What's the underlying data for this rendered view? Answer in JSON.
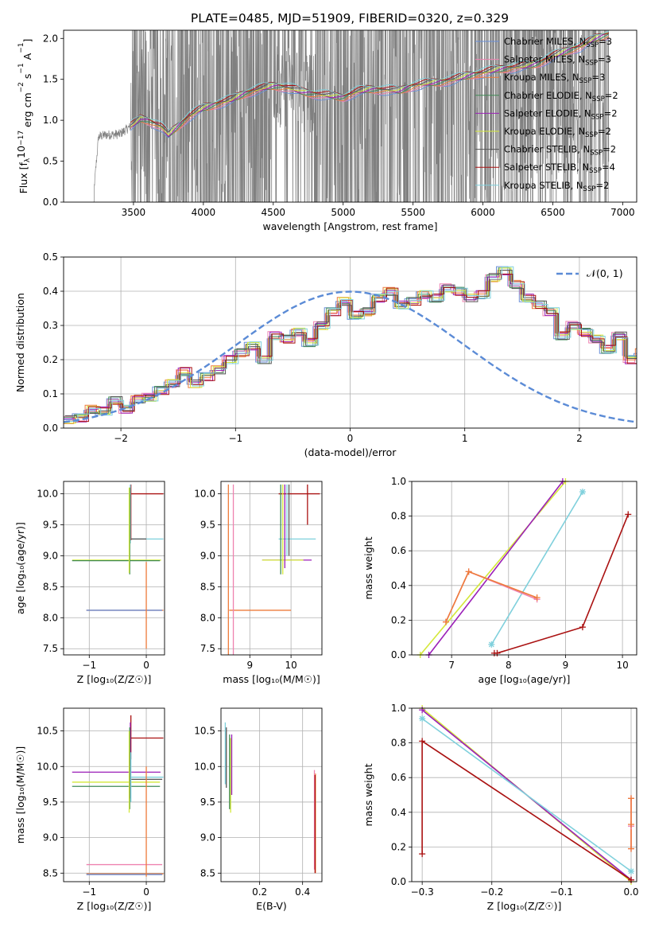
{
  "figure": {
    "title": "PLATE=0485, MJD=51909, FIBERID=0320, z=0.329"
  },
  "colors": {
    "chabrier_miles": "#6a8fd8",
    "salpeter_miles": "#ee82b0",
    "kroupa_miles": "#ee7b3a",
    "chabrier_elodie": "#3f8a55",
    "salpeter_elodie": "#9b1fb8",
    "kroupa_elodie": "#d4e83a",
    "chabrier_stelib": "#555555",
    "salpeter_stelib": "#aa1111",
    "kroupa_stelib": "#7fd0dc",
    "data": "#808080",
    "grid": "#b0b0b0",
    "normal": "#5b8bd6"
  },
  "legend": {
    "series": [
      {
        "key": "chabrier_miles",
        "text": "Chabrier MILES, N",
        "sub": "SSP",
        "eq": "=3"
      },
      {
        "key": "salpeter_miles",
        "text": "Salpeter MILES, N",
        "sub": "SSP",
        "eq": "=3"
      },
      {
        "key": "kroupa_miles",
        "text": "Kroupa MILES, N",
        "sub": "SSP",
        "eq": "=3"
      },
      {
        "key": "chabrier_elodie",
        "text": "Chabrier ELODIE, N",
        "sub": "SSP",
        "eq": "=2"
      },
      {
        "key": "salpeter_elodie",
        "text": "Salpeter ELODIE, N",
        "sub": "SSP",
        "eq": "=2"
      },
      {
        "key": "kroupa_elodie",
        "text": "Kroupa ELODIE, N",
        "sub": "SSP",
        "eq": "=2"
      },
      {
        "key": "chabrier_stelib",
        "text": "Chabrier STELIB, N",
        "sub": "SSP",
        "eq": "=2"
      },
      {
        "key": "salpeter_stelib",
        "text": "Salpeter STELIB, N",
        "sub": "SSP",
        "eq": "=4"
      },
      {
        "key": "kroupa_stelib",
        "text": "Kroupa STELIB, N",
        "sub": "SSP",
        "eq": "=2"
      }
    ],
    "normal_label": "𝒩(0, 1)"
  },
  "chart_data": [
    {
      "id": "spectrum",
      "type": "line",
      "xlabel": "wavelength [Angstrom, rest frame]",
      "ylabel_parts": [
        "Flux [f",
        "λ",
        "10",
        "−17",
        " erg cm",
        "−2",
        " s",
        "−1",
        " A",
        "−1",
        "]"
      ],
      "xlim": [
        3000,
        7100
      ],
      "ylim": [
        0,
        2.1
      ],
      "xticks": [
        3500,
        4000,
        4500,
        5000,
        5500,
        6000,
        6500,
        7000
      ],
      "yticks": [
        0.0,
        0.5,
        1.0,
        1.5,
        2.0
      ],
      "grid": false,
      "legend_position": "upper right",
      "data_range": [
        3210,
        6900
      ],
      "model_continuum": {
        "x": [
          3210,
          3250,
          3300,
          3400,
          3500,
          3550,
          3600,
          3700,
          3750,
          3800,
          3900,
          4000,
          4100,
          4200,
          4300,
          4400,
          4500,
          4600,
          4700,
          4800,
          4900,
          5000,
          5100,
          5200,
          5300,
          5400,
          5500,
          5600,
          5700,
          5800,
          5900,
          6000,
          6100,
          6200,
          6300,
          6400,
          6500,
          6600,
          6700,
          6800,
          6900
        ],
        "y": [
          0.0,
          0.8,
          0.82,
          0.83,
          0.95,
          1.02,
          1.0,
          0.92,
          0.82,
          0.9,
          1.05,
          1.15,
          1.2,
          1.25,
          1.33,
          1.38,
          1.42,
          1.4,
          1.35,
          1.32,
          1.3,
          1.28,
          1.35,
          1.38,
          1.37,
          1.36,
          1.42,
          1.45,
          1.47,
          1.5,
          1.55,
          1.58,
          1.62,
          1.64,
          1.66,
          1.7,
          1.78,
          1.85,
          1.9,
          2.0,
          2.05
        ]
      }
    },
    {
      "id": "residuals",
      "type": "step",
      "xlabel": "(data-model)/error",
      "ylabel": "Normed distribution",
      "xlim": [
        -2.5,
        2.5
      ],
      "ylim": [
        0,
        0.5
      ],
      "xticks": [
        -2,
        -1,
        0,
        1,
        2
      ],
      "yticks": [
        0.0,
        0.1,
        0.2,
        0.3,
        0.4,
        0.5
      ],
      "grid": true,
      "legend_position": "upper right",
      "bin_edges_start": -2.5,
      "bin_width": 0.1,
      "histogram": [
        0.025,
        0.03,
        0.055,
        0.05,
        0.08,
        0.055,
        0.085,
        0.09,
        0.11,
        0.13,
        0.165,
        0.13,
        0.15,
        0.17,
        0.2,
        0.22,
        0.24,
        0.2,
        0.27,
        0.26,
        0.28,
        0.25,
        0.3,
        0.34,
        0.37,
        0.33,
        0.34,
        0.38,
        0.4,
        0.36,
        0.37,
        0.39,
        0.38,
        0.41,
        0.4,
        0.38,
        0.39,
        0.44,
        0.46,
        0.42,
        0.38,
        0.36,
        0.34,
        0.27,
        0.3,
        0.28,
        0.26,
        0.23,
        0.27,
        0.2,
        0.22,
        0.2,
        0.18,
        0.2,
        0.17,
        0.15,
        0.13,
        0.16,
        0.12,
        0.11,
        0.1,
        0.09,
        0.085,
        0.07,
        0.09,
        0.065,
        0.06,
        0.045,
        0.05,
        0.03,
        0.025,
        0.02
      ]
    },
    {
      "id": "age_vs_Z",
      "type": "errorbar",
      "xlabel": "Z [log₁₀(Z/Z☉)]",
      "ylabel": "age  [log₁₀(age/yr)]",
      "xlim": [
        -1.45,
        0.32
      ],
      "ylim": [
        7.4,
        10.2
      ],
      "xticks": [
        -1,
        0
      ],
      "yticks": [
        7.5,
        8.0,
        8.5,
        9.0,
        9.5,
        10.0
      ],
      "grid": true,
      "hlines": [
        {
          "key": "salpeter_stelib",
          "y": 10.0,
          "x0": -0.27,
          "x1": 0.3
        },
        {
          "key": "kroupa_stelib",
          "y": 9.27,
          "x0": -0.27,
          "x1": 0.3
        },
        {
          "key": "chabrier_stelib",
          "y": 9.27,
          "x0": -0.27,
          "x1": 0.0
        },
        {
          "key": "kroupa_elodie",
          "y": 8.93,
          "x0": -1.3,
          "x1": 0.26
        },
        {
          "key": "chabrier_elodie",
          "y": 8.92,
          "x0": -1.3,
          "x1": 0.24
        },
        {
          "key": "kroupa_miles",
          "y": 8.12,
          "x0": -1.05,
          "x1": 0.3
        },
        {
          "key": "chabrier_miles",
          "y": 8.12,
          "x0": -1.05,
          "x1": 0.28
        }
      ],
      "vlines": [
        {
          "key": "salpeter_stelib",
          "x": -0.27,
          "y0": 9.25,
          "y1": 10.15
        },
        {
          "key": "kroupa_stelib",
          "x": -0.28,
          "y0": 9.2,
          "y1": 10.15
        },
        {
          "key": "chabrier_elodie",
          "x": -0.29,
          "y0": 8.7,
          "y1": 10.1
        },
        {
          "key": "kroupa_elodie",
          "x": -0.3,
          "y0": 8.72,
          "y1": 10.1
        },
        {
          "key": "kroupa_miles",
          "x": 0.0,
          "y0": 7.5,
          "y1": 8.9
        }
      ]
    },
    {
      "id": "age_vs_mass",
      "type": "errorbar",
      "xlabel": "mass [log₁₀(M/M☉)]",
      "ylabel": "",
      "xlim": [
        8.3,
        10.75
      ],
      "ylim": [
        7.4,
        10.2
      ],
      "xticks": [
        9,
        10
      ],
      "yticks": [
        7.5,
        8.0,
        8.5,
        9.0,
        9.5,
        10.0
      ],
      "grid": true,
      "hlines": [
        {
          "key": "salpeter_stelib",
          "y": 10.0,
          "x0": 9.7,
          "x1": 10.7
        },
        {
          "key": "kroupa_stelib",
          "y": 9.27,
          "x0": 9.7,
          "x1": 10.6
        },
        {
          "key": "salpeter_elodie",
          "y": 8.93,
          "x0": 9.3,
          "x1": 10.5
        },
        {
          "key": "kroupa_elodie",
          "y": 8.93,
          "x0": 9.3,
          "x1": 10.3
        },
        {
          "key": "kroupa_miles",
          "y": 8.12,
          "x0": 8.5,
          "x1": 10.0
        }
      ],
      "vlines": [
        {
          "key": "kroupa_miles",
          "x": 8.48,
          "y0": 7.4,
          "y1": 10.15
        },
        {
          "key": "salpeter_miles",
          "x": 8.6,
          "y0": 7.4,
          "y1": 10.15
        },
        {
          "key": "chabrier_elodie",
          "x": 9.75,
          "y0": 8.7,
          "y1": 10.15
        },
        {
          "key": "kroupa_elodie",
          "x": 9.8,
          "y0": 8.7,
          "y1": 10.15
        },
        {
          "key": "salpeter_elodie",
          "x": 9.85,
          "y0": 8.8,
          "y1": 10.15
        },
        {
          "key": "kroupa_stelib",
          "x": 9.9,
          "y0": 9.0,
          "y1": 10.15
        },
        {
          "key": "chabrier_stelib",
          "x": 9.95,
          "y0": 9.0,
          "y1": 10.15
        },
        {
          "key": "salpeter_stelib",
          "x": 10.4,
          "y0": 9.5,
          "y1": 10.15
        }
      ]
    },
    {
      "id": "weight_vs_age",
      "type": "line",
      "xlabel": "age  [log₁₀(age/yr)]",
      "ylabel": "mass weight",
      "xlim": [
        6.3,
        10.25
      ],
      "ylim": [
        0,
        1.0
      ],
      "xticks": [
        7,
        8,
        9,
        10
      ],
      "yticks": [
        0.0,
        0.2,
        0.4,
        0.6,
        0.8,
        1.0
      ],
      "grid": true,
      "series": [
        {
          "key": "kroupa_elodie",
          "x": [
            6.45,
            9.0
          ],
          "y": [
            0.0,
            1.0
          ],
          "marker": "+"
        },
        {
          "key": "salpeter_elodie",
          "x": [
            6.6,
            8.95
          ],
          "y": [
            0.0,
            1.0
          ],
          "marker": "+"
        },
        {
          "key": "kroupa_stelib",
          "x": [
            7.7,
            9.3
          ],
          "y": [
            0.06,
            0.94
          ],
          "marker": "*"
        },
        {
          "key": "salpeter_stelib",
          "x": [
            7.75,
            7.8,
            9.3,
            10.1
          ],
          "y": [
            0.01,
            0.01,
            0.16,
            0.81
          ],
          "marker": "+"
        },
        {
          "key": "salpeter_miles",
          "x": [
            6.9,
            7.3,
            8.5
          ],
          "y": [
            0.19,
            0.48,
            0.32
          ],
          "marker": "+"
        },
        {
          "key": "kroupa_miles",
          "x": [
            6.9,
            7.3,
            8.5
          ],
          "y": [
            0.19,
            0.48,
            0.33
          ],
          "marker": "+"
        }
      ]
    },
    {
      "id": "mass_vs_Z",
      "type": "errorbar",
      "xlabel": "Z [log₁₀(Z/Z☉)]",
      "ylabel": "mass [log₁₀(M/M☉)]",
      "xlim": [
        -1.45,
        0.32
      ],
      "ylim": [
        8.38,
        10.82
      ],
      "xticks": [
        -1,
        0
      ],
      "yticks": [
        8.5,
        9.0,
        9.5,
        10.0,
        10.5
      ],
      "grid": true,
      "hlines": [
        {
          "key": "salpeter_stelib",
          "y": 10.4,
          "x0": -0.27,
          "x1": 0.3
        },
        {
          "key": "salpeter_elodie",
          "y": 9.92,
          "x0": -1.3,
          "x1": 0.25
        },
        {
          "key": "kroupa_stelib",
          "y": 9.85,
          "x0": -0.27,
          "x1": 0.3
        },
        {
          "key": "chabrier_stelib",
          "y": 9.82,
          "x0": -0.27,
          "x1": 0.28
        },
        {
          "key": "kroupa_elodie",
          "y": 9.78,
          "x0": -1.3,
          "x1": 0.24
        },
        {
          "key": "chabrier_elodie",
          "y": 9.72,
          "x0": -1.3,
          "x1": 0.24
        },
        {
          "key": "salpeter_miles",
          "y": 8.62,
          "x0": -1.05,
          "x1": 0.28
        },
        {
          "key": "kroupa_miles",
          "y": 8.49,
          "x0": -1.05,
          "x1": 0.3
        },
        {
          "key": "chabrier_miles",
          "y": 8.48,
          "x0": -1.05,
          "x1": 0.28
        }
      ],
      "vlines": [
        {
          "key": "salpeter_stelib",
          "x": -0.27,
          "y0": 10.1,
          "y1": 10.72
        },
        {
          "key": "salpeter_elodie",
          "x": -0.28,
          "y0": 9.55,
          "y1": 10.62
        },
        {
          "key": "chabrier_elodie",
          "x": -0.29,
          "y0": 9.4,
          "y1": 10.55
        },
        {
          "key": "kroupa_elodie",
          "x": -0.3,
          "y0": 9.35,
          "y1": 10.5
        },
        {
          "key": "kroupa_stelib",
          "x": -0.27,
          "y0": 9.5,
          "y1": 10.2
        },
        {
          "key": "kroupa_miles",
          "x": 0.0,
          "y0": 8.45,
          "y1": 10.0
        }
      ]
    },
    {
      "id": "mass_vs_EBV",
      "type": "errorbar",
      "xlabel": "E(B-V)",
      "ylabel": "",
      "xlim": [
        0.02,
        0.49
      ],
      "ylim": [
        8.38,
        10.82
      ],
      "xticks": [
        0.2,
        0.4
      ],
      "yticks": [
        8.5,
        9.0,
        9.5,
        10.0,
        10.5
      ],
      "grid": true,
      "hlines": [],
      "vlines": [
        {
          "key": "kroupa_stelib",
          "x": 0.04,
          "y0": 9.75,
          "y1": 10.62
        },
        {
          "key": "chabrier_stelib",
          "x": 0.045,
          "y0": 9.7,
          "y1": 10.55
        },
        {
          "key": "chabrier_elodie",
          "x": 0.06,
          "y0": 9.4,
          "y1": 10.45
        },
        {
          "key": "kroupa_elodie",
          "x": 0.065,
          "y0": 9.35,
          "y1": 10.4
        },
        {
          "key": "salpeter_elodie",
          "x": 0.07,
          "y0": 9.6,
          "y1": 10.45
        },
        {
          "key": "salpeter_miles",
          "x": 0.455,
          "y0": 8.55,
          "y1": 9.95
        },
        {
          "key": "kroupa_miles",
          "x": 0.46,
          "y0": 8.5,
          "y1": 9.9
        },
        {
          "key": "salpeter_stelib",
          "x": 0.458,
          "y0": 8.5,
          "y1": 9.88
        }
      ]
    },
    {
      "id": "weight_vs_Z",
      "type": "line",
      "xlabel": "Z [log₁₀(Z/Z☉)]",
      "ylabel": "mass weight",
      "xlim": [
        -0.315,
        0.008
      ],
      "ylim": [
        0,
        1.0
      ],
      "xticks": [
        -0.3,
        -0.2,
        -0.1,
        0.0
      ],
      "yticks": [
        0.0,
        0.2,
        0.4,
        0.6,
        0.8,
        1.0
      ],
      "grid": true,
      "series": [
        {
          "key": "kroupa_elodie",
          "x": [
            -0.3,
            0.0
          ],
          "y": [
            1.0,
            0.0
          ],
          "marker": "+"
        },
        {
          "key": "salpeter_elodie",
          "x": [
            -0.3,
            0.0
          ],
          "y": [
            0.99,
            0.01
          ],
          "marker": "+"
        },
        {
          "key": "kroupa_stelib",
          "x": [
            -0.3,
            0.0
          ],
          "y": [
            0.94,
            0.06
          ],
          "marker": "*"
        },
        {
          "key": "salpeter_stelib",
          "x": [
            -0.3,
            -0.3,
            0.0
          ],
          "y": [
            0.16,
            0.81,
            0.01
          ],
          "marker": "+"
        },
        {
          "key": "salpeter_miles",
          "x": [
            0.0,
            0.0,
            0.0
          ],
          "y": [
            0.19,
            0.48,
            0.32
          ],
          "marker": "+"
        },
        {
          "key": "kroupa_miles",
          "x": [
            0.0,
            0.0,
            0.0
          ],
          "y": [
            0.19,
            0.48,
            0.33
          ],
          "marker": "+"
        }
      ]
    }
  ]
}
